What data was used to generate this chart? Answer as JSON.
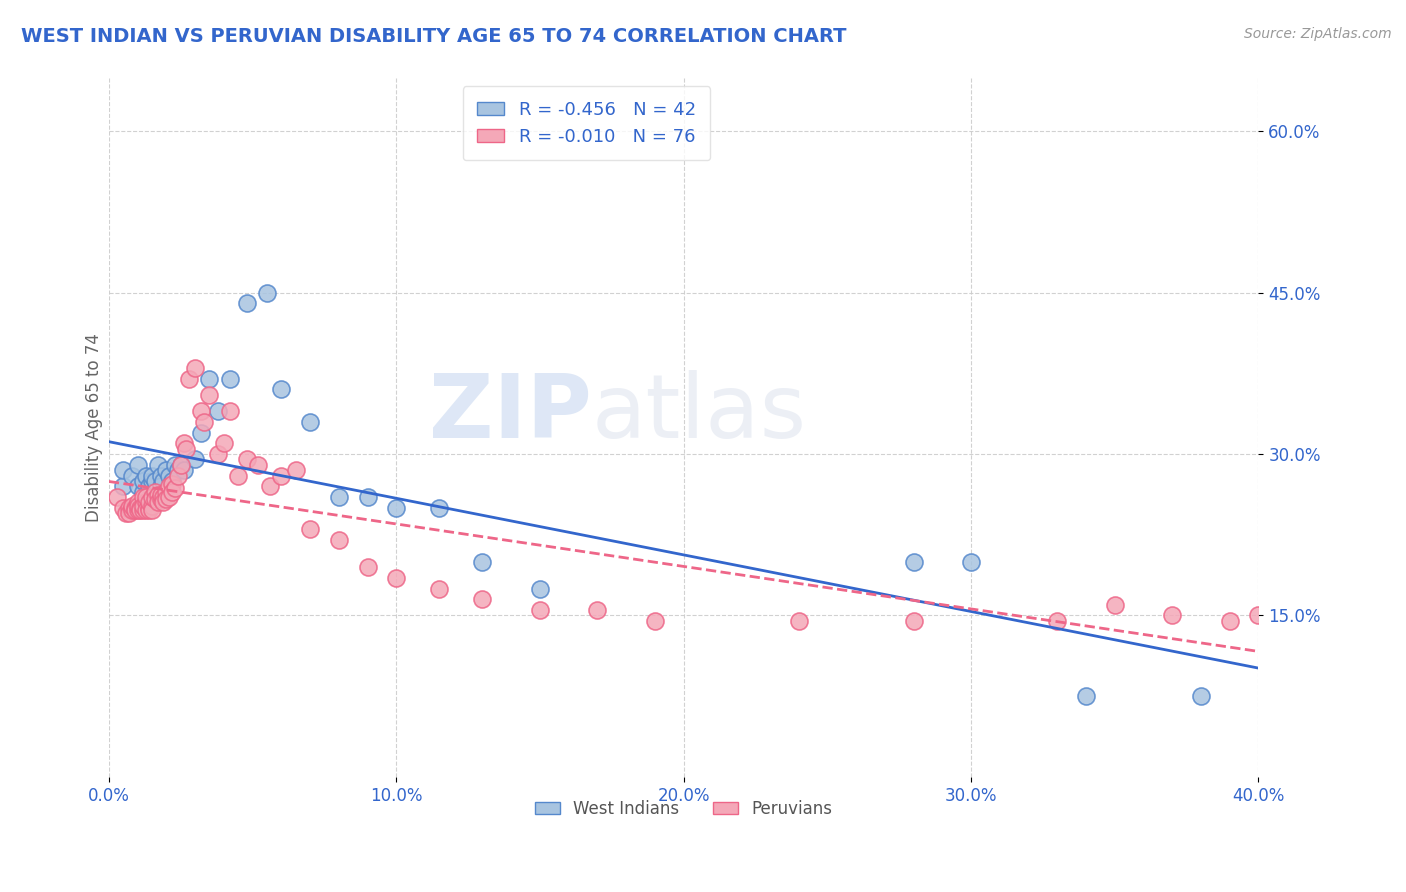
{
  "title": "WEST INDIAN VS PERUVIAN DISABILITY AGE 65 TO 74 CORRELATION CHART",
  "source": "Source: ZipAtlas.com",
  "ylabel": "Disability Age 65 to 74",
  "watermark_zip": "ZIP",
  "watermark_atlas": "atlas",
  "legend_label1": "West Indians",
  "legend_label2": "Peruvians",
  "r1": -0.456,
  "n1": 42,
  "r2": -0.01,
  "n2": 76,
  "color1": "#A8C4E0",
  "color2": "#F4A8B8",
  "edge_color1": "#5588CC",
  "edge_color2": "#EE6688",
  "line_color1": "#3366CC",
  "line_color2": "#EE6688",
  "tick_color": "#3366CC",
  "title_color": "#3366CC",
  "ylabel_color": "#666666",
  "source_color": "#999999",
  "xlim": [
    0.0,
    0.4
  ],
  "ylim": [
    0.0,
    0.65
  ],
  "xticks": [
    0.0,
    0.1,
    0.2,
    0.3,
    0.4
  ],
  "yticks": [
    0.15,
    0.3,
    0.45,
    0.6
  ],
  "blue_x": [
    0.005,
    0.005,
    0.008,
    0.01,
    0.01,
    0.012,
    0.012,
    0.013,
    0.014,
    0.015,
    0.015,
    0.016,
    0.017,
    0.018,
    0.018,
    0.019,
    0.02,
    0.021,
    0.022,
    0.023,
    0.024,
    0.025,
    0.026,
    0.03,
    0.032,
    0.035,
    0.038,
    0.042,
    0.048,
    0.055,
    0.06,
    0.07,
    0.08,
    0.09,
    0.1,
    0.115,
    0.13,
    0.15,
    0.28,
    0.3,
    0.34,
    0.38
  ],
  "blue_y": [
    0.27,
    0.285,
    0.28,
    0.29,
    0.27,
    0.265,
    0.275,
    0.28,
    0.27,
    0.275,
    0.28,
    0.275,
    0.29,
    0.28,
    0.27,
    0.275,
    0.285,
    0.28,
    0.275,
    0.29,
    0.285,
    0.29,
    0.285,
    0.295,
    0.32,
    0.37,
    0.34,
    0.37,
    0.44,
    0.45,
    0.36,
    0.33,
    0.26,
    0.26,
    0.25,
    0.25,
    0.2,
    0.175,
    0.2,
    0.2,
    0.075,
    0.075
  ],
  "pink_x": [
    0.003,
    0.005,
    0.006,
    0.007,
    0.007,
    0.008,
    0.008,
    0.008,
    0.009,
    0.009,
    0.01,
    0.01,
    0.01,
    0.011,
    0.011,
    0.012,
    0.012,
    0.012,
    0.013,
    0.013,
    0.013,
    0.014,
    0.014,
    0.014,
    0.015,
    0.015,
    0.015,
    0.016,
    0.016,
    0.017,
    0.017,
    0.018,
    0.018,
    0.019,
    0.019,
    0.02,
    0.02,
    0.021,
    0.021,
    0.022,
    0.022,
    0.023,
    0.024,
    0.025,
    0.026,
    0.027,
    0.028,
    0.03,
    0.032,
    0.033,
    0.035,
    0.038,
    0.04,
    0.042,
    0.045,
    0.048,
    0.052,
    0.056,
    0.06,
    0.065,
    0.07,
    0.08,
    0.09,
    0.1,
    0.115,
    0.13,
    0.15,
    0.17,
    0.19,
    0.24,
    0.28,
    0.33,
    0.35,
    0.37,
    0.39,
    0.4
  ],
  "pink_y": [
    0.26,
    0.25,
    0.245,
    0.25,
    0.245,
    0.25,
    0.248,
    0.252,
    0.25,
    0.248,
    0.255,
    0.248,
    0.252,
    0.25,
    0.248,
    0.26,
    0.248,
    0.252,
    0.255,
    0.248,
    0.26,
    0.25,
    0.248,
    0.255,
    0.252,
    0.248,
    0.26,
    0.265,
    0.258,
    0.262,
    0.255,
    0.258,
    0.262,
    0.26,
    0.255,
    0.265,
    0.258,
    0.27,
    0.26,
    0.272,
    0.265,
    0.268,
    0.28,
    0.29,
    0.31,
    0.305,
    0.37,
    0.38,
    0.34,
    0.33,
    0.355,
    0.3,
    0.31,
    0.34,
    0.28,
    0.295,
    0.29,
    0.27,
    0.28,
    0.285,
    0.23,
    0.22,
    0.195,
    0.185,
    0.175,
    0.165,
    0.155,
    0.155,
    0.145,
    0.145,
    0.145,
    0.145,
    0.16,
    0.15,
    0.145,
    0.15
  ]
}
